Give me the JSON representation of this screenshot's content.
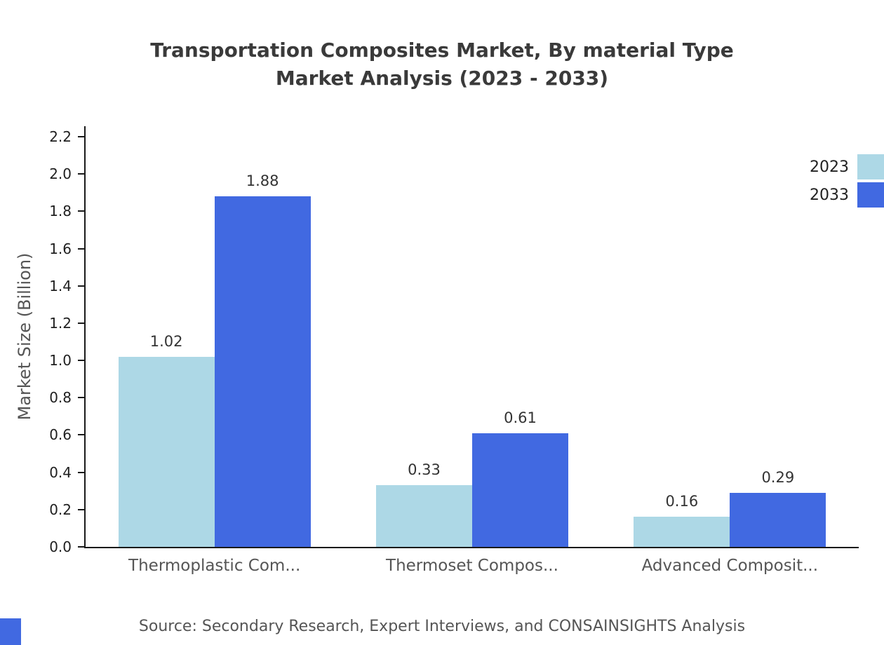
{
  "title": {
    "line1": "Transportation Composites Market, By material Type",
    "line2": "Market Analysis (2023 - 2033)"
  },
  "chart_data": {
    "type": "bar",
    "categories": [
      "Thermoplastic Com...",
      "Thermoset Compos...",
      "Advanced Composit..."
    ],
    "series": [
      {
        "name": "2023",
        "color": "#add8e6",
        "values": [
          1.02,
          0.33,
          0.16
        ]
      },
      {
        "name": "2033",
        "color": "#4169e1",
        "values": [
          1.88,
          0.61,
          0.29
        ]
      }
    ],
    "title": "Transportation Composites Market, By material Type Market Analysis (2023 - 2033)",
    "xlabel": "",
    "ylabel": "Market Size (Billion)",
    "ylim": [
      0,
      2.2
    ],
    "ytick_step": 0.2,
    "grid": false,
    "legend_position": "top-right"
  },
  "footer": {
    "source": "Source: Secondary Research, Expert Interviews, and CONSAINSIGHTS Analysis"
  }
}
